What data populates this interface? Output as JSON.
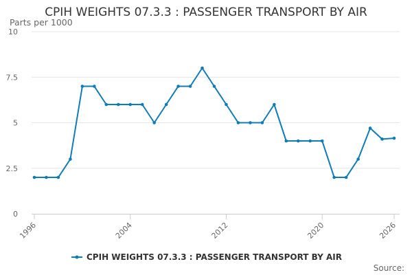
{
  "chart_data": {
    "type": "line",
    "title": "CPIH WEIGHTS 07.3.3 : PASSENGER TRANSPORT BY AIR",
    "ylabel": "Parts per 1000",
    "xlabel": "",
    "xlim": [
      1996,
      2026
    ],
    "ylim": [
      0,
      10
    ],
    "y_ticks": [
      {
        "value": 0,
        "label": "0"
      },
      {
        "value": 2.5,
        "label": "2.5"
      },
      {
        "value": 5,
        "label": "5"
      },
      {
        "value": 7.5,
        "label": "7.5"
      },
      {
        "value": 10,
        "label": "10"
      }
    ],
    "x_ticks": [
      {
        "value": 1996,
        "label": "1996"
      },
      {
        "value": 2004,
        "label": "2004"
      },
      {
        "value": 2012,
        "label": "2012"
      },
      {
        "value": 2020,
        "label": "2020"
      },
      {
        "value": 2026,
        "label": "2026"
      }
    ],
    "grid": true,
    "legend_position": "bottom",
    "series": [
      {
        "name": "CPIH WEIGHTS 07.3.3 : PASSENGER TRANSPORT BY AIR",
        "color": "#0f7cb8",
        "x": [
          1996,
          1997,
          1998,
          1999,
          2000,
          2001,
          2002,
          2003,
          2004,
          2005,
          2006,
          2007,
          2008,
          2009,
          2010,
          2011,
          2012,
          2013,
          2014,
          2015,
          2016,
          2017,
          2018,
          2019,
          2020,
          2021,
          2022,
          2023,
          2024,
          2025,
          2026
        ],
        "values": [
          2,
          2,
          2,
          3,
          7,
          7,
          6,
          6,
          6,
          6,
          5,
          6,
          7,
          7,
          8,
          7,
          6,
          5,
          5,
          5,
          6,
          4,
          4,
          4,
          4,
          2,
          2,
          3,
          4.7,
          4.1,
          4.15
        ]
      }
    ],
    "source": "Source:"
  }
}
